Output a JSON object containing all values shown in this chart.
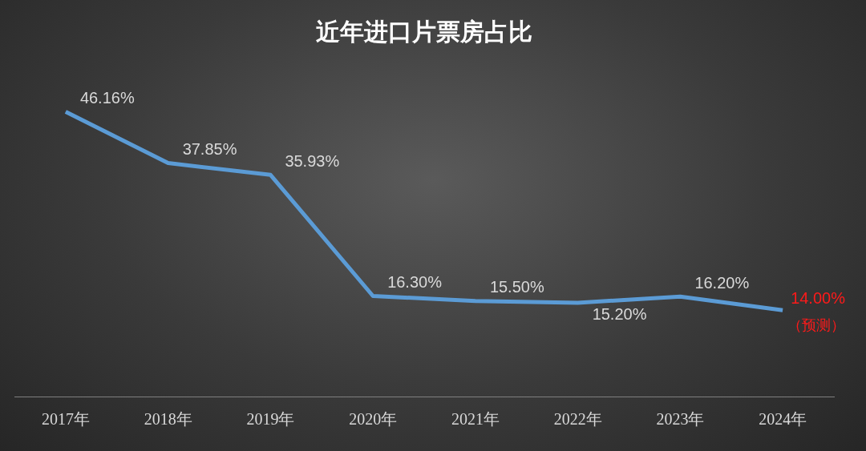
{
  "chart_data": {
    "type": "line",
    "title": "近年进口片票房占比",
    "categories": [
      "2017年",
      "2018年",
      "2019年",
      "2020年",
      "2021年",
      "2022年",
      "2023年",
      "2024年"
    ],
    "values": [
      46.16,
      37.85,
      35.93,
      16.3,
      15.5,
      15.2,
      16.2,
      14
    ],
    "color": "#5b9bd5",
    "value_labels": [
      "46.16%",
      "37.85%",
      "35.93%",
      "16.30%",
      "15.50%",
      "15.20%",
      "16.20%",
      "14.00%"
    ],
    "annotations": [
      {
        "text": "（预测）",
        "x": "2024年",
        "y": 14
      }
    ],
    "marker": "none",
    "line_style": "solid",
    "grid": false,
    "legend": false
  }
}
